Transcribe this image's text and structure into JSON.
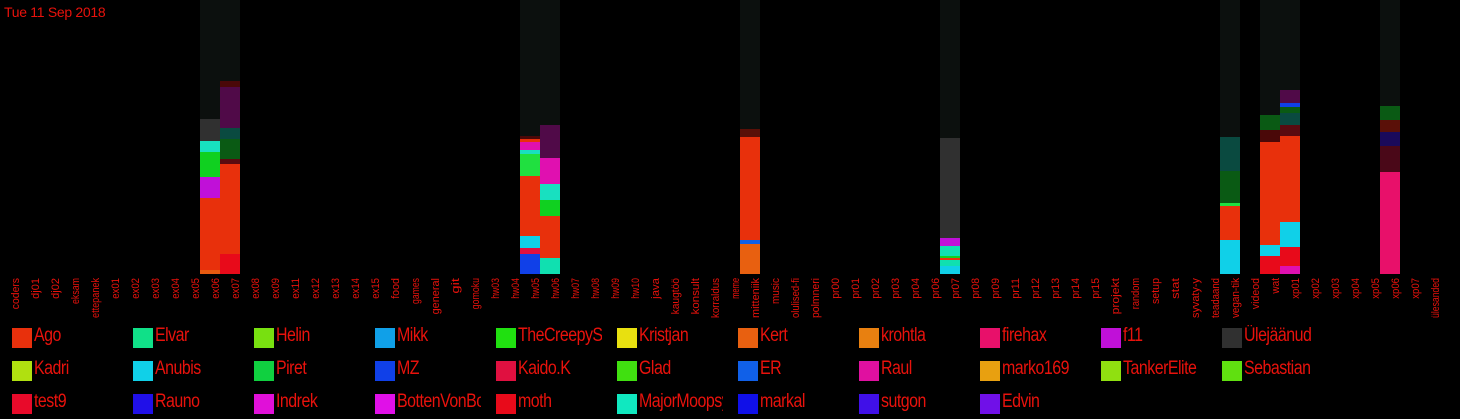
{
  "date_label": "Tue 11 Sep 2018",
  "chart_data": {
    "type": "bar",
    "stacked": true,
    "ylim": [
      0,
      274
    ],
    "categories": [
      "coders",
      "dj01",
      "dj02",
      "eksam",
      "ettepanek",
      "ex01",
      "ex02",
      "ex03",
      "ex04",
      "ex05",
      "ex06",
      "ex07",
      "ex08",
      "ex09",
      "ex11",
      "ex12",
      "ex13",
      "ex14",
      "ex15",
      "food",
      "games",
      "general",
      "git",
      "gomoku",
      "hw03",
      "hw04",
      "hw05",
      "hw06",
      "hw07",
      "hw08",
      "hw09",
      "hw10",
      "java",
      "kaugtöö",
      "konsult",
      "korraldus",
      "meme",
      "mitteniik",
      "music",
      "olulised-fi",
      "polmneri",
      "pr00",
      "pr01",
      "pr02",
      "pr03",
      "pr04",
      "pr06",
      "pr07",
      "pr08",
      "pr09",
      "pr11",
      "pr12",
      "pr13",
      "pr14",
      "pr15",
      "projekt",
      "random",
      "setup",
      "stat",
      "syvaty-y",
      "teadaand",
      "vegan-tik",
      "videod",
      "wat",
      "xp01",
      "xp02",
      "xp03",
      "xp04",
      "xp05",
      "xp06",
      "xp07",
      "ülesanded"
    ],
    "background_totals": {
      "ex01": 274,
      "ex02": 274,
      "general": 274,
      "git": 274,
      "java": 274,
      "pr01": 274,
      "random": 274,
      "stat": 274,
      "syvaty-y": 274,
      "xp01": 274
    },
    "stacks": {
      "ex01": [
        {
          "color": "#e85a10",
          "value": 4
        },
        {
          "color": "#e8300c",
          "value": 72
        },
        {
          "color": "#c010d8",
          "value": 21
        },
        {
          "color": "#10d020",
          "value": 25
        },
        {
          "color": "#18e0c0",
          "value": 11
        },
        {
          "color": "#303030",
          "value": 22
        }
      ],
      "ex02": [
        {
          "color": "#e80a1a",
          "value": 20
        },
        {
          "color": "#e8300c",
          "value": 90
        },
        {
          "color": "#5a0a10",
          "value": 5
        },
        {
          "color": "#0a5a14",
          "value": 20
        },
        {
          "color": "#0a4a40",
          "value": 11
        },
        {
          "color": "#500a48",
          "value": 41
        },
        {
          "color": "#4a0808",
          "value": 6
        }
      ],
      "general": [
        {
          "color": "#1040e8",
          "value": 20
        },
        {
          "color": "#e01040",
          "value": 6
        },
        {
          "color": "#10d0e8",
          "value": 12
        },
        {
          "color": "#e8300c",
          "value": 60
        },
        {
          "color": "#20e040",
          "value": 22
        },
        {
          "color": "#18e0c0",
          "value": 4
        },
        {
          "color": "#e010b0",
          "value": 8
        },
        {
          "color": "#e8300c",
          "value": 3
        },
        {
          "color": "#4a0808",
          "value": 3
        }
      ],
      "git": [
        {
          "color": "#10e0b0",
          "value": 16
        },
        {
          "color": "#e8300c",
          "value": 42
        },
        {
          "color": "#10d020",
          "value": 16
        },
        {
          "color": "#18e0c0",
          "value": 16
        },
        {
          "color": "#e010b0",
          "value": 26
        },
        {
          "color": "#500a48",
          "value": 33
        }
      ],
      "java": [
        {
          "color": "#e86010",
          "value": 30
        },
        {
          "color": "#1060e8",
          "value": 4
        },
        {
          "color": "#e8300c",
          "value": 103
        },
        {
          "color": "#5a1008",
          "value": 8
        }
      ],
      "pr01": [
        {
          "color": "#10d0e8",
          "value": 8
        },
        {
          "color": "#10e0b0",
          "value": 6
        },
        {
          "color": "#e8300c",
          "value": 2
        },
        {
          "color": "#10d020",
          "value": 2
        },
        {
          "color": "#10e0b0",
          "value": 10
        },
        {
          "color": "#c010d8",
          "value": 8
        },
        {
          "color": "#303030",
          "value": 100
        }
      ],
      "random": [
        {
          "color": "#10d0e8",
          "value": 34
        },
        {
          "color": "#e8300c",
          "value": 34
        },
        {
          "color": "#20e040",
          "value": 3
        },
        {
          "color": "#0a5a14",
          "value": 32
        },
        {
          "color": "#0a4a40",
          "value": 34
        }
      ],
      "stat": [
        {
          "color": "#e80a1a",
          "value": 18
        },
        {
          "color": "#10d0e8",
          "value": 11
        },
        {
          "color": "#e8300c",
          "value": 103
        },
        {
          "color": "#4a0808",
          "value": 12
        },
        {
          "color": "#0a5a14",
          "value": 15
        }
      ],
      "syvaty-y": [
        {
          "color": "#e010b0",
          "value": 8
        },
        {
          "color": "#e80a1a",
          "value": 19
        },
        {
          "color": "#10d0e8",
          "value": 25
        },
        {
          "color": "#e8300c",
          "value": 86
        },
        {
          "color": "#5a0a10",
          "value": 11
        },
        {
          "color": "#0a4a40",
          "value": 12
        },
        {
          "color": "#0a5a14",
          "value": 6
        },
        {
          "color": "#1040e8",
          "value": 4
        },
        {
          "color": "#500a48",
          "value": 13
        }
      ],
      "xp01": [
        {
          "color": "#e8106a",
          "value": 102
        },
        {
          "color": "#4a0818",
          "value": 26
        },
        {
          "color": "#1a0a5a",
          "value": 14
        },
        {
          "color": "#5a1008",
          "value": 12
        },
        {
          "color": "#0a5a14",
          "value": 14
        }
      ]
    },
    "legend_position": "bottom"
  },
  "legend": [
    {
      "name": "Ago",
      "color": "#e8300c"
    },
    {
      "name": "Elvar",
      "color": "#10e088"
    },
    {
      "name": "Helin",
      "color": "#78e010"
    },
    {
      "name": "Mikk",
      "color": "#10a0e8"
    },
    {
      "name": "TheCreepySh",
      "color": "#20e010"
    },
    {
      "name": "Kristjan",
      "color": "#e8e010"
    },
    {
      "name": "Kert",
      "color": "#e86010"
    },
    {
      "name": "krohtla",
      "color": "#e88010"
    },
    {
      "name": "firehax",
      "color": "#e8106a"
    },
    {
      "name": "f11",
      "color": "#c010d8"
    },
    {
      "name": "Ülejäänud",
      "color": "#303030"
    },
    {
      "name": "Kadri",
      "color": "#b0e010"
    },
    {
      "name": "Anubis",
      "color": "#10d0e8"
    },
    {
      "name": "Piret",
      "color": "#10d040"
    },
    {
      "name": "MZ",
      "color": "#1040e8"
    },
    {
      "name": "Kaido.K",
      "color": "#e01040"
    },
    {
      "name": "Glad",
      "color": "#40e010"
    },
    {
      "name": "ER",
      "color": "#1060e8"
    },
    {
      "name": "Raul",
      "color": "#e010a0"
    },
    {
      "name": "marko169",
      "color": "#e8a010"
    },
    {
      "name": "TankerElite",
      "color": "#90e010"
    },
    {
      "name": "Sebastian",
      "color": "#60e010"
    },
    {
      "name": "test9",
      "color": "#e80a2a"
    },
    {
      "name": "Rauno",
      "color": "#2010e8"
    },
    {
      "name": "Indrek",
      "color": "#e010d8"
    },
    {
      "name": "BottenVonBot",
      "color": "#e010e8"
    },
    {
      "name": "moth",
      "color": "#e80a1a"
    },
    {
      "name": "MajorMoopsy",
      "color": "#10e8c0"
    },
    {
      "name": "markal",
      "color": "#1010e8"
    },
    {
      "name": "sutgon",
      "color": "#4010e8"
    },
    {
      "name": "Edvin",
      "color": "#7010e8"
    }
  ]
}
